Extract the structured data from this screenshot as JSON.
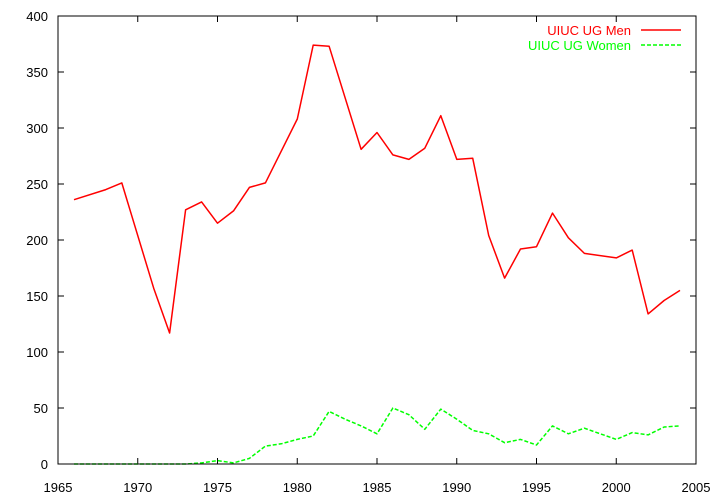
{
  "chart_data": {
    "type": "line",
    "title": "",
    "xlabel": "",
    "ylabel": "",
    "xlim": [
      1965,
      2005
    ],
    "ylim": [
      0,
      400
    ],
    "xticks": [
      1965,
      1970,
      1975,
      1980,
      1985,
      1990,
      1995,
      2000,
      2005
    ],
    "yticks": [
      0,
      50,
      100,
      150,
      200,
      250,
      300,
      350,
      400
    ],
    "grid": false,
    "legend": "top-right",
    "series": [
      {
        "name": "UIUC UG Men",
        "color": "#ff0000",
        "dash": "solid",
        "x": [
          1966,
          1968,
          1969,
          1971,
          1972,
          1973,
          1974,
          1975,
          1976,
          1977,
          1978,
          1980,
          1981,
          1982,
          1984,
          1985,
          1986,
          1987,
          1988,
          1989,
          1990,
          1991,
          1992,
          1993,
          1994,
          1995,
          1996,
          1997,
          1998,
          2000,
          2001,
          2002,
          2003,
          2004
        ],
        "y": [
          236,
          245,
          251,
          157,
          117,
          227,
          234,
          215,
          226,
          247,
          251,
          308,
          374,
          373,
          281,
          296,
          276,
          272,
          282,
          311,
          272,
          273,
          204,
          166,
          192,
          194,
          224,
          202,
          188,
          184,
          191,
          134,
          146,
          155
        ]
      },
      {
        "name": "UIUC UG Women",
        "color": "#00ff00",
        "dash": "dashed",
        "x": [
          1966,
          1968,
          1970,
          1972,
          1973,
          1974,
          1975,
          1976,
          1977,
          1978,
          1979,
          1980,
          1981,
          1982,
          1983,
          1984,
          1985,
          1986,
          1987,
          1988,
          1989,
          1990,
          1991,
          1992,
          1993,
          1994,
          1995,
          1996,
          1997,
          1998,
          1999,
          2000,
          2001,
          2002,
          2003,
          2004
        ],
        "y": [
          0,
          0,
          0,
          0,
          0,
          1,
          3,
          1,
          5,
          16,
          18,
          22,
          25,
          47,
          40,
          34,
          27,
          50,
          44,
          31,
          49,
          40,
          30,
          27,
          19,
          22,
          17,
          34,
          27,
          32,
          27,
          22,
          28,
          26,
          33,
          34
        ]
      }
    ]
  }
}
